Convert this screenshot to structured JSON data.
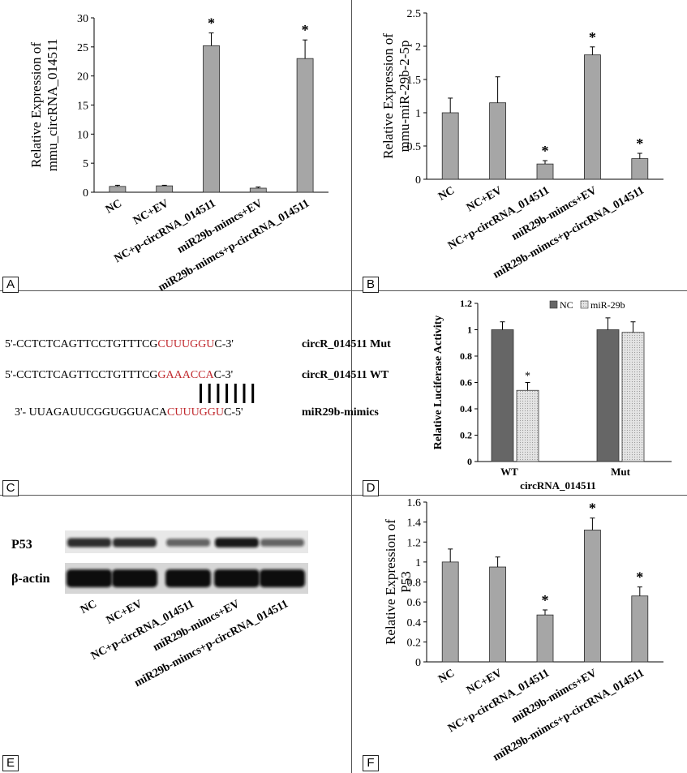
{
  "panels": {
    "A": {
      "label": "A",
      "chart_data": {
        "type": "bar",
        "ylabel": [
          "Relative Expression of",
          "mmu_circRNA_014511"
        ],
        "categories": [
          "NC",
          "NC+EV",
          "NC+p-circRNA_014511",
          "miR29b-mimcs+EV",
          "miR29b-mimcs+p-circRNA_014511"
        ],
        "values": [
          1.0,
          1.1,
          25.2,
          0.7,
          23.0
        ],
        "errors": [
          0.2,
          0.1,
          2.2,
          0.2,
          3.2
        ],
        "significant": [
          "",
          "",
          "*",
          "",
          "*"
        ],
        "yticks": [
          "0",
          "5",
          "10",
          "15",
          "20",
          "25",
          "30"
        ],
        "ylim": [
          0,
          30
        ],
        "bar_color": "#a6a6a6",
        "grid": false
      }
    },
    "B": {
      "label": "B",
      "chart_data": {
        "type": "bar",
        "ylabel": [
          "Relative Expression of",
          "mmu-miR-29b-2-5p"
        ],
        "categories": [
          "NC",
          "NC+EV",
          "NC+p-circRNA_014511",
          "miR29b-mimcs+EV",
          "miR29b-mimcs+p-circRNA_014511"
        ],
        "values": [
          1.0,
          1.15,
          0.23,
          1.87,
          0.31
        ],
        "errors": [
          0.22,
          0.39,
          0.05,
          0.12,
          0.08
        ],
        "significant": [
          "",
          "",
          "*",
          "*",
          "*"
        ],
        "yticks": [
          "0",
          "0.5",
          "1",
          "1.5",
          "2",
          "2.5"
        ],
        "ylim": [
          0,
          2.5
        ],
        "bar_color": "#a6a6a6",
        "grid": false
      }
    },
    "C": {
      "label": "C",
      "sequences": [
        {
          "pre": "5'-CCTCTCAGTTCCTGTTTCG",
          "hl": "CUUUGGU",
          "post": "C-3'",
          "name": "circR_014511  Mut"
        },
        {
          "pre": "5'-CCTCTCAGTTCCTGTTTCG",
          "hl": "GAAACCA",
          "post": "C-3'",
          "name": "circR_014511  WT"
        },
        {
          "pre": "3'- UUAGAUUCGGUGGUACA",
          "hl": "CUUUGGU",
          "post": "C-5'",
          "name": "miR29b-mimics"
        }
      ],
      "highlight_color": "#c0282d"
    },
    "D": {
      "label": "D",
      "chart_data": {
        "type": "bar",
        "ylabel": "Relative Luciferase Activity",
        "xlabel": "circRNA_014511",
        "categories": [
          "WT",
          "Mut"
        ],
        "series": [
          {
            "name": "NC",
            "values": [
              1.0,
              1.0
            ],
            "errors": [
              0.06,
              0.09
            ],
            "color": "#666666"
          },
          {
            "name": "miR-29b",
            "values": [
              0.54,
              0.98
            ],
            "errors": [
              0.06,
              0.08
            ],
            "color": "#e2e2e2"
          }
        ],
        "significant": [
          [
            "",
            "*"
          ],
          [
            "",
            ""
          ]
        ],
        "yticks": [
          "0",
          "0.2",
          "0.4",
          "0.6",
          "0.8",
          "1",
          "1.2"
        ],
        "ylim": [
          0,
          1.2
        ],
        "legend": "top-right",
        "grid": false
      }
    },
    "E": {
      "label": "E",
      "rows": [
        "P53",
        "β-actin"
      ],
      "lanes": [
        "NC",
        "NC+EV",
        "NC+p-circRNA_014511",
        "miR29b-mimcs+EV",
        "miR29b-mimcs+p-circRNA_014511"
      ],
      "band_intensity": {
        "P53": [
          0.85,
          0.85,
          0.6,
          0.95,
          0.6
        ],
        "β-actin": [
          1,
          1,
          1,
          1,
          1
        ]
      }
    },
    "F": {
      "label": "F",
      "chart_data": {
        "type": "bar",
        "ylabel": [
          "Relative Expression of",
          "P53"
        ],
        "categories": [
          "NC",
          "NC+EV",
          "NC+p-circRNA_014511",
          "miR29b-mimcs+EV",
          "miR29b-mimcs+p-circRNA_014511"
        ],
        "values": [
          1.0,
          0.95,
          0.47,
          1.32,
          0.66
        ],
        "errors": [
          0.13,
          0.1,
          0.05,
          0.12,
          0.09
        ],
        "significant": [
          "",
          "",
          "*",
          "*",
          "*"
        ],
        "yticks": [
          "0",
          "0.2",
          "0.4",
          "0.6",
          "0.8",
          "1",
          "1.2",
          "1.4",
          "1.6"
        ],
        "ylim": [
          0,
          1.6
        ],
        "bar_color": "#a6a6a6",
        "grid": false
      }
    }
  }
}
